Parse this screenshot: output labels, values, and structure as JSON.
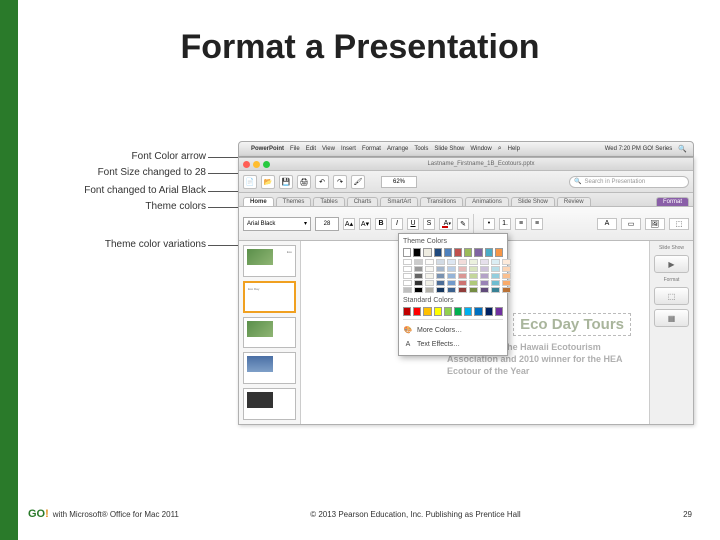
{
  "title": "Format a Presentation",
  "callouts": {
    "c1": "Font Color arrow",
    "c2": "Font Size changed to 28",
    "c3": "Font changed to Arial Black",
    "c4": "Theme colors",
    "c5": "Theme color variations"
  },
  "mac_menu": {
    "app": "PowerPoint",
    "items": [
      "File",
      "Edit",
      "View",
      "Insert",
      "Format",
      "Arrange",
      "Tools",
      "Slide Show",
      "Window",
      "Help"
    ],
    "right": "Wed 7:20 PM   GO! Series"
  },
  "window": {
    "filename": "Lastname_Firstname_1B_Ecotours.pptx",
    "zoom": "62%",
    "search_placeholder": "Search in Presentation"
  },
  "ribbon": {
    "tabs": [
      "Home",
      "Themes",
      "Tables",
      "Charts",
      "SmartArt",
      "Transitions",
      "Animations",
      "Slide Show",
      "Review",
      "Format"
    ],
    "font_name": "Arial Black",
    "font_size": "28"
  },
  "slide": {
    "title": "Eco Day Tours",
    "body": "A member of the Hawaii Ecotourism Association and 2010 winner for the HEA Ecotour of the Year"
  },
  "side_panel": {
    "label1": "Slide Show",
    "label2": "Format"
  },
  "color_picker": {
    "header": "Theme Colors",
    "theme_colors": [
      "#ffffff",
      "#000000",
      "#eeece1",
      "#1f497d",
      "#4f81bd",
      "#c0504d",
      "#9bbb59",
      "#8064a2",
      "#4bacc6",
      "#f79646"
    ],
    "standard_label": "Standard Colors",
    "standard_colors": [
      "#c00000",
      "#ff0000",
      "#ffc000",
      "#ffff00",
      "#92d050",
      "#00b050",
      "#00b0f0",
      "#0070c0",
      "#002060",
      "#7030a0"
    ],
    "more": "More Colors…",
    "effects": "Text Effects…"
  },
  "footer": {
    "left": "with Microsoft® Office for Mac 2011",
    "center": "© 2013 Pearson Education, Inc. Publishing as Prentice Hall",
    "page": "29"
  }
}
